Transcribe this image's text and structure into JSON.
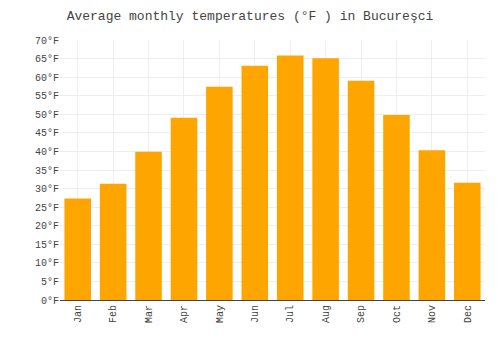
{
  "chart_data": {
    "type": "bar",
    "title": "Average monthly temperatures (°F ) in Bucureşci",
    "categories": [
      "Jan",
      "Feb",
      "Mar",
      "Apr",
      "May",
      "Jun",
      "Jul",
      "Aug",
      "Sep",
      "Oct",
      "Nov",
      "Dec"
    ],
    "values": [
      27.3,
      31.3,
      39.9,
      49.1,
      57.4,
      63.1,
      65.8,
      65.1,
      59.0,
      49.8,
      40.3,
      31.6
    ],
    "color": "#FFA500",
    "ylim": [
      0,
      70
    ],
    "yticks": [
      {
        "value": 0,
        "label": "0°F"
      },
      {
        "value": 5,
        "label": "5°F"
      },
      {
        "value": 10,
        "label": "10°F"
      },
      {
        "value": 15,
        "label": "15°F"
      },
      {
        "value": 20,
        "label": "20°F"
      },
      {
        "value": 25,
        "label": "25°F"
      },
      {
        "value": 30,
        "label": "30°F"
      },
      {
        "value": 35,
        "label": "35°F"
      },
      {
        "value": 40,
        "label": "40°F"
      },
      {
        "value": 45,
        "label": "45°F"
      },
      {
        "value": 50,
        "label": "50°F"
      },
      {
        "value": 55,
        "label": "55°F"
      },
      {
        "value": 60,
        "label": "60°F"
      },
      {
        "value": 65,
        "label": "65°F"
      },
      {
        "value": 70,
        "label": "70°F"
      }
    ],
    "grid": true
  }
}
